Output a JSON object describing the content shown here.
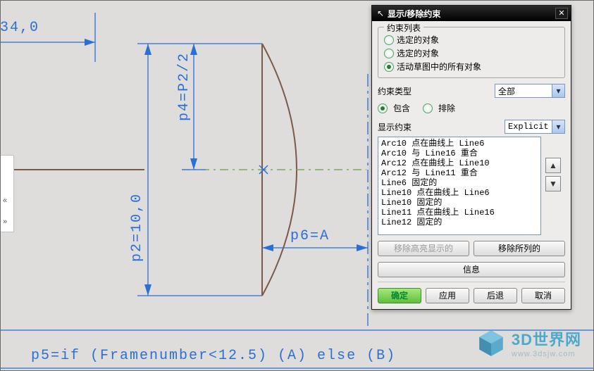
{
  "colors": {
    "dim": "#2a6fd6",
    "sketch": "#7a5b4a",
    "axis": "#6aa04a",
    "bg": "#dedddb"
  },
  "dims": {
    "top_left_label": "34,0",
    "p4_label": "p4=P2/2",
    "p2_label": "p2=10,0",
    "p6_label": "p6=A",
    "p5_label": "p5=if (Framenumber<12.5) (A) else (B)"
  },
  "dialog": {
    "title": "显示/移除约束",
    "group1": {
      "legend": "约束列表",
      "opt1": "选定的对象",
      "opt2": "选定的对象",
      "opt3": "活动草图中的所有对象",
      "selected": 3
    },
    "type_label": "约束类型",
    "type_combo": "全部",
    "filter": {
      "opt1": "包含",
      "opt2": "排除",
      "selected": 1
    },
    "show_label": "显示约束",
    "show_combo": "Explicit",
    "constraints": [
      "Arc10 点在曲线上 Line6",
      "Arc10 与 Line16 重合",
      "Arc12 点在曲线上 Line10",
      "Arc12 与 Line11 重合",
      "Line6 固定的",
      "Line10 点在曲线上 Line6",
      "Line10 固定的",
      "Line11 点在曲线上 Line16",
      "Line12 固定的"
    ],
    "buttons": {
      "remove_hi": "移除高亮显示的",
      "remove_listed": "移除所列的",
      "info": "信息",
      "ok": "确定",
      "apply": "应用",
      "back": "后退",
      "cancel": "取消"
    }
  },
  "watermark": {
    "line1": "3D世界网",
    "line2": "www.3dsjw.com"
  }
}
